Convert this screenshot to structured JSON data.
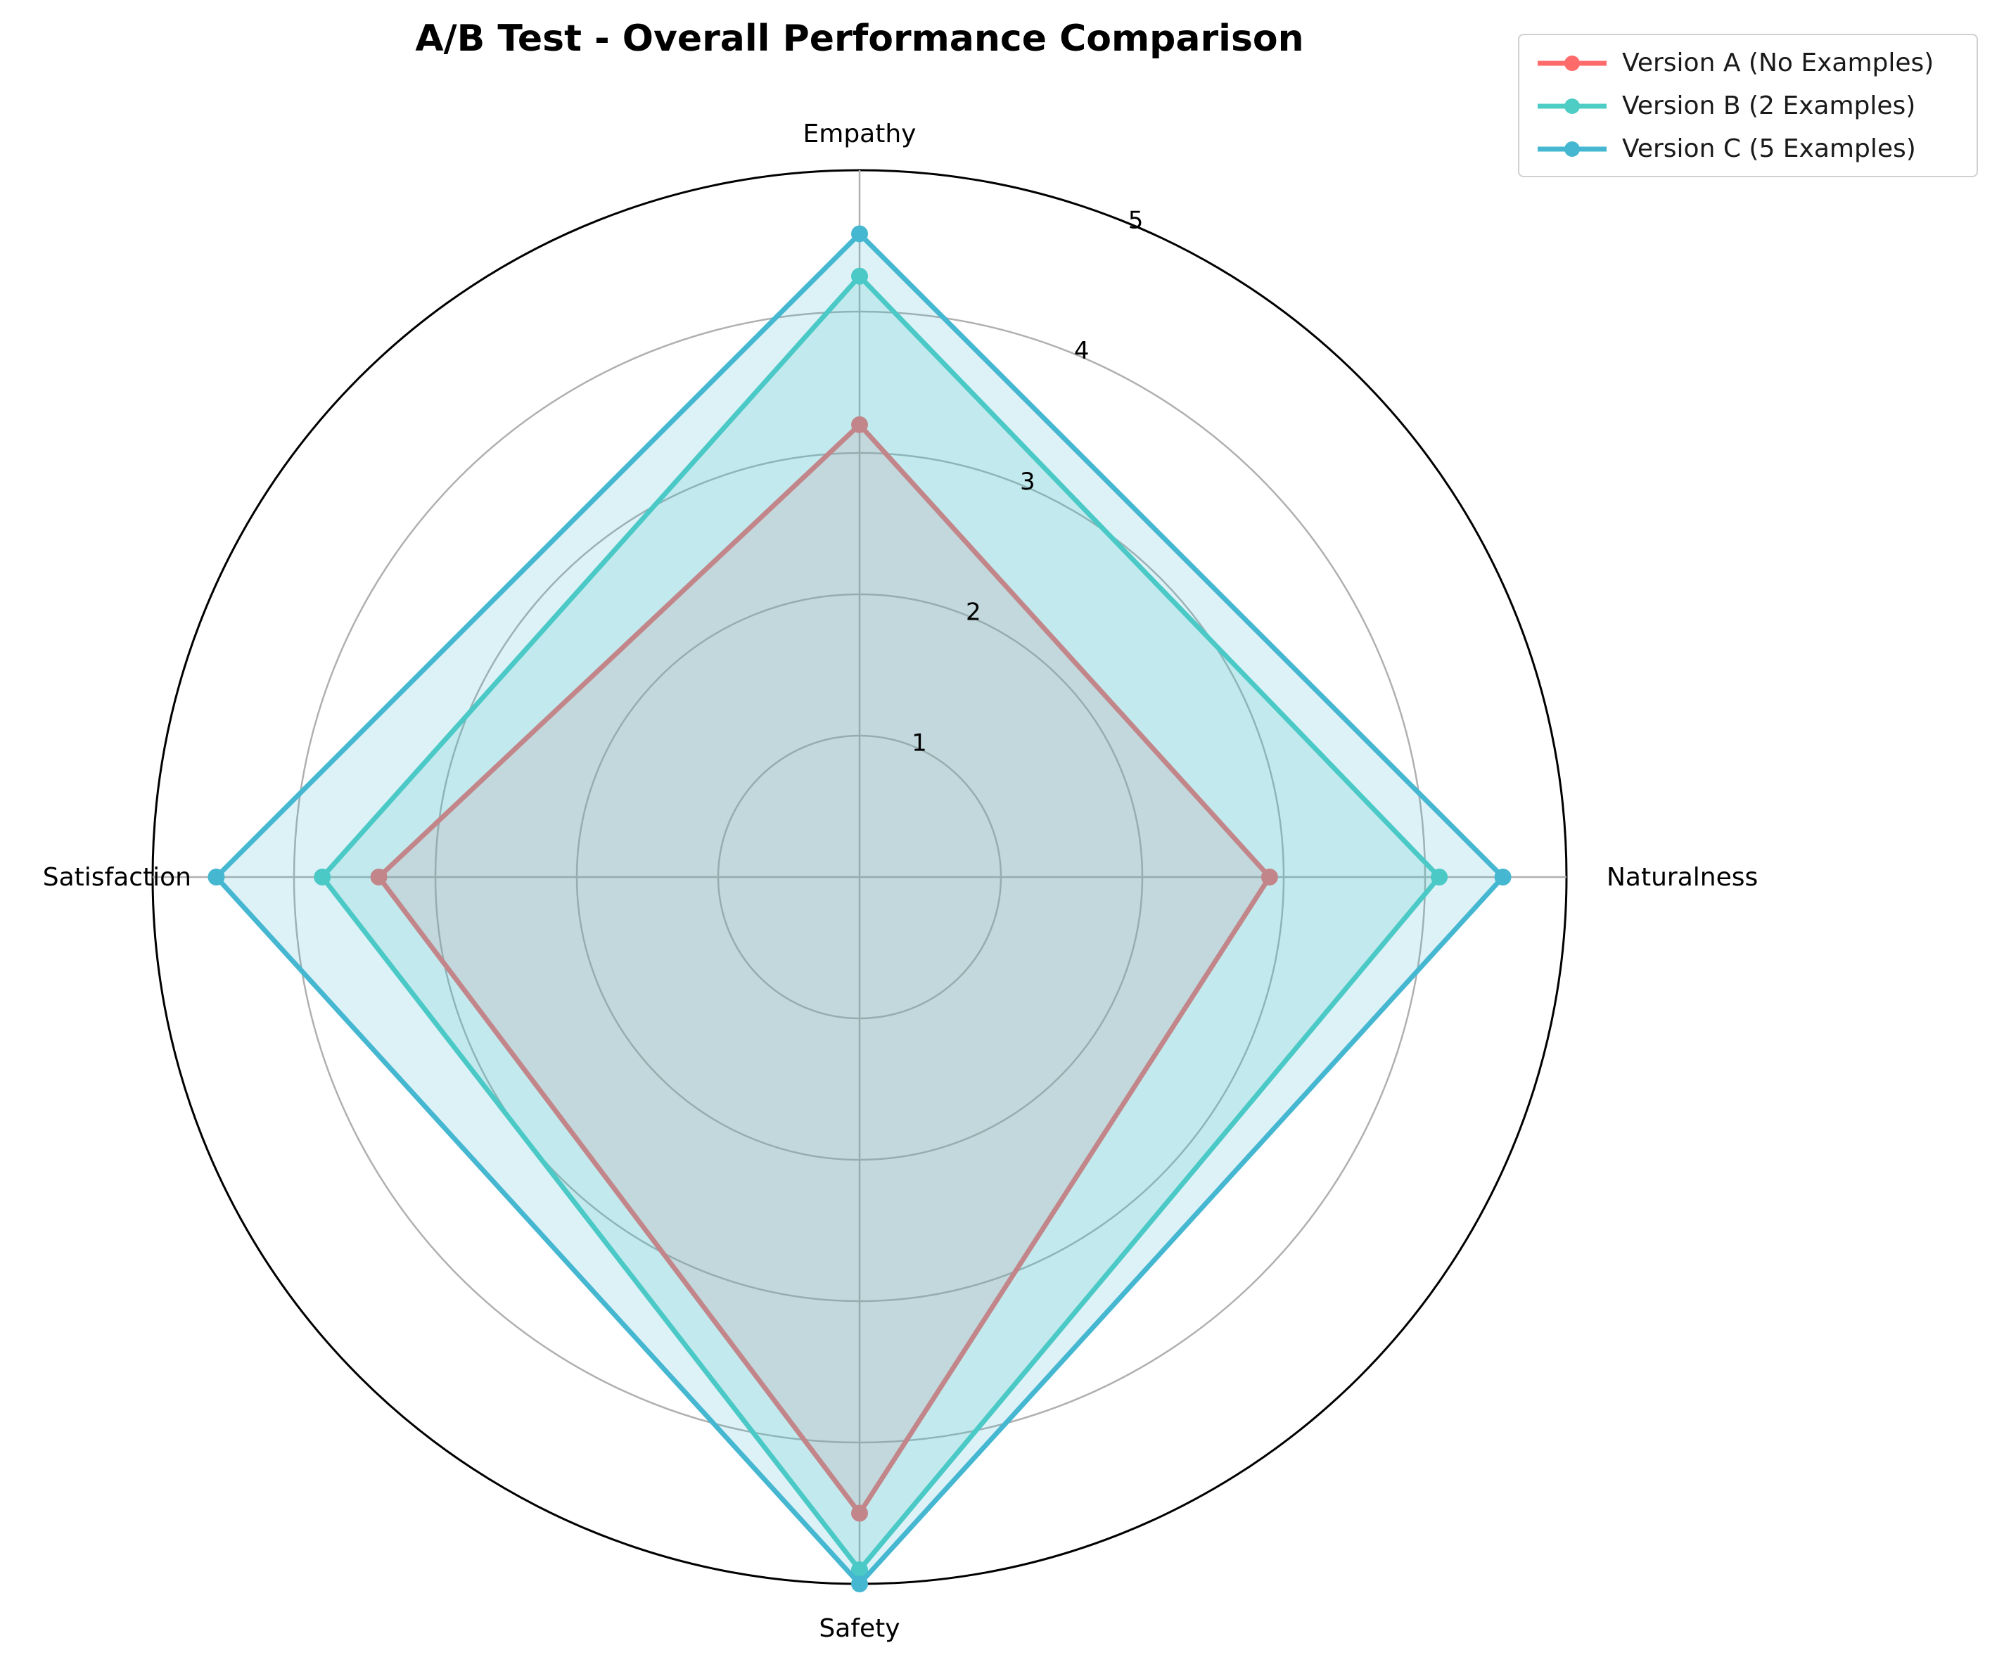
{
  "chart_data": {
    "type": "radar",
    "title": "A/B Test - Overall Performance Comparison",
    "categories": [
      "Empathy",
      "Naturalness",
      "Safety",
      "Satisfaction"
    ],
    "rlim": [
      0,
      5
    ],
    "rticks": [
      "1",
      "2",
      "3",
      "4",
      "5"
    ],
    "grid": true,
    "legend_position": "top-right",
    "series": [
      {
        "name": "Version A (No Examples)",
        "values": [
          3.2,
          2.9,
          4.5,
          3.4
        ],
        "color": "#ff6b6b"
      },
      {
        "name": "Version B (2 Examples)",
        "values": [
          4.25,
          4.1,
          4.9,
          3.8
        ],
        "color": "#4ecdc4"
      },
      {
        "name": "Version C (5 Examples)",
        "values": [
          4.55,
          4.55,
          5.0,
          4.55
        ],
        "color": "#45b7d1"
      }
    ]
  }
}
